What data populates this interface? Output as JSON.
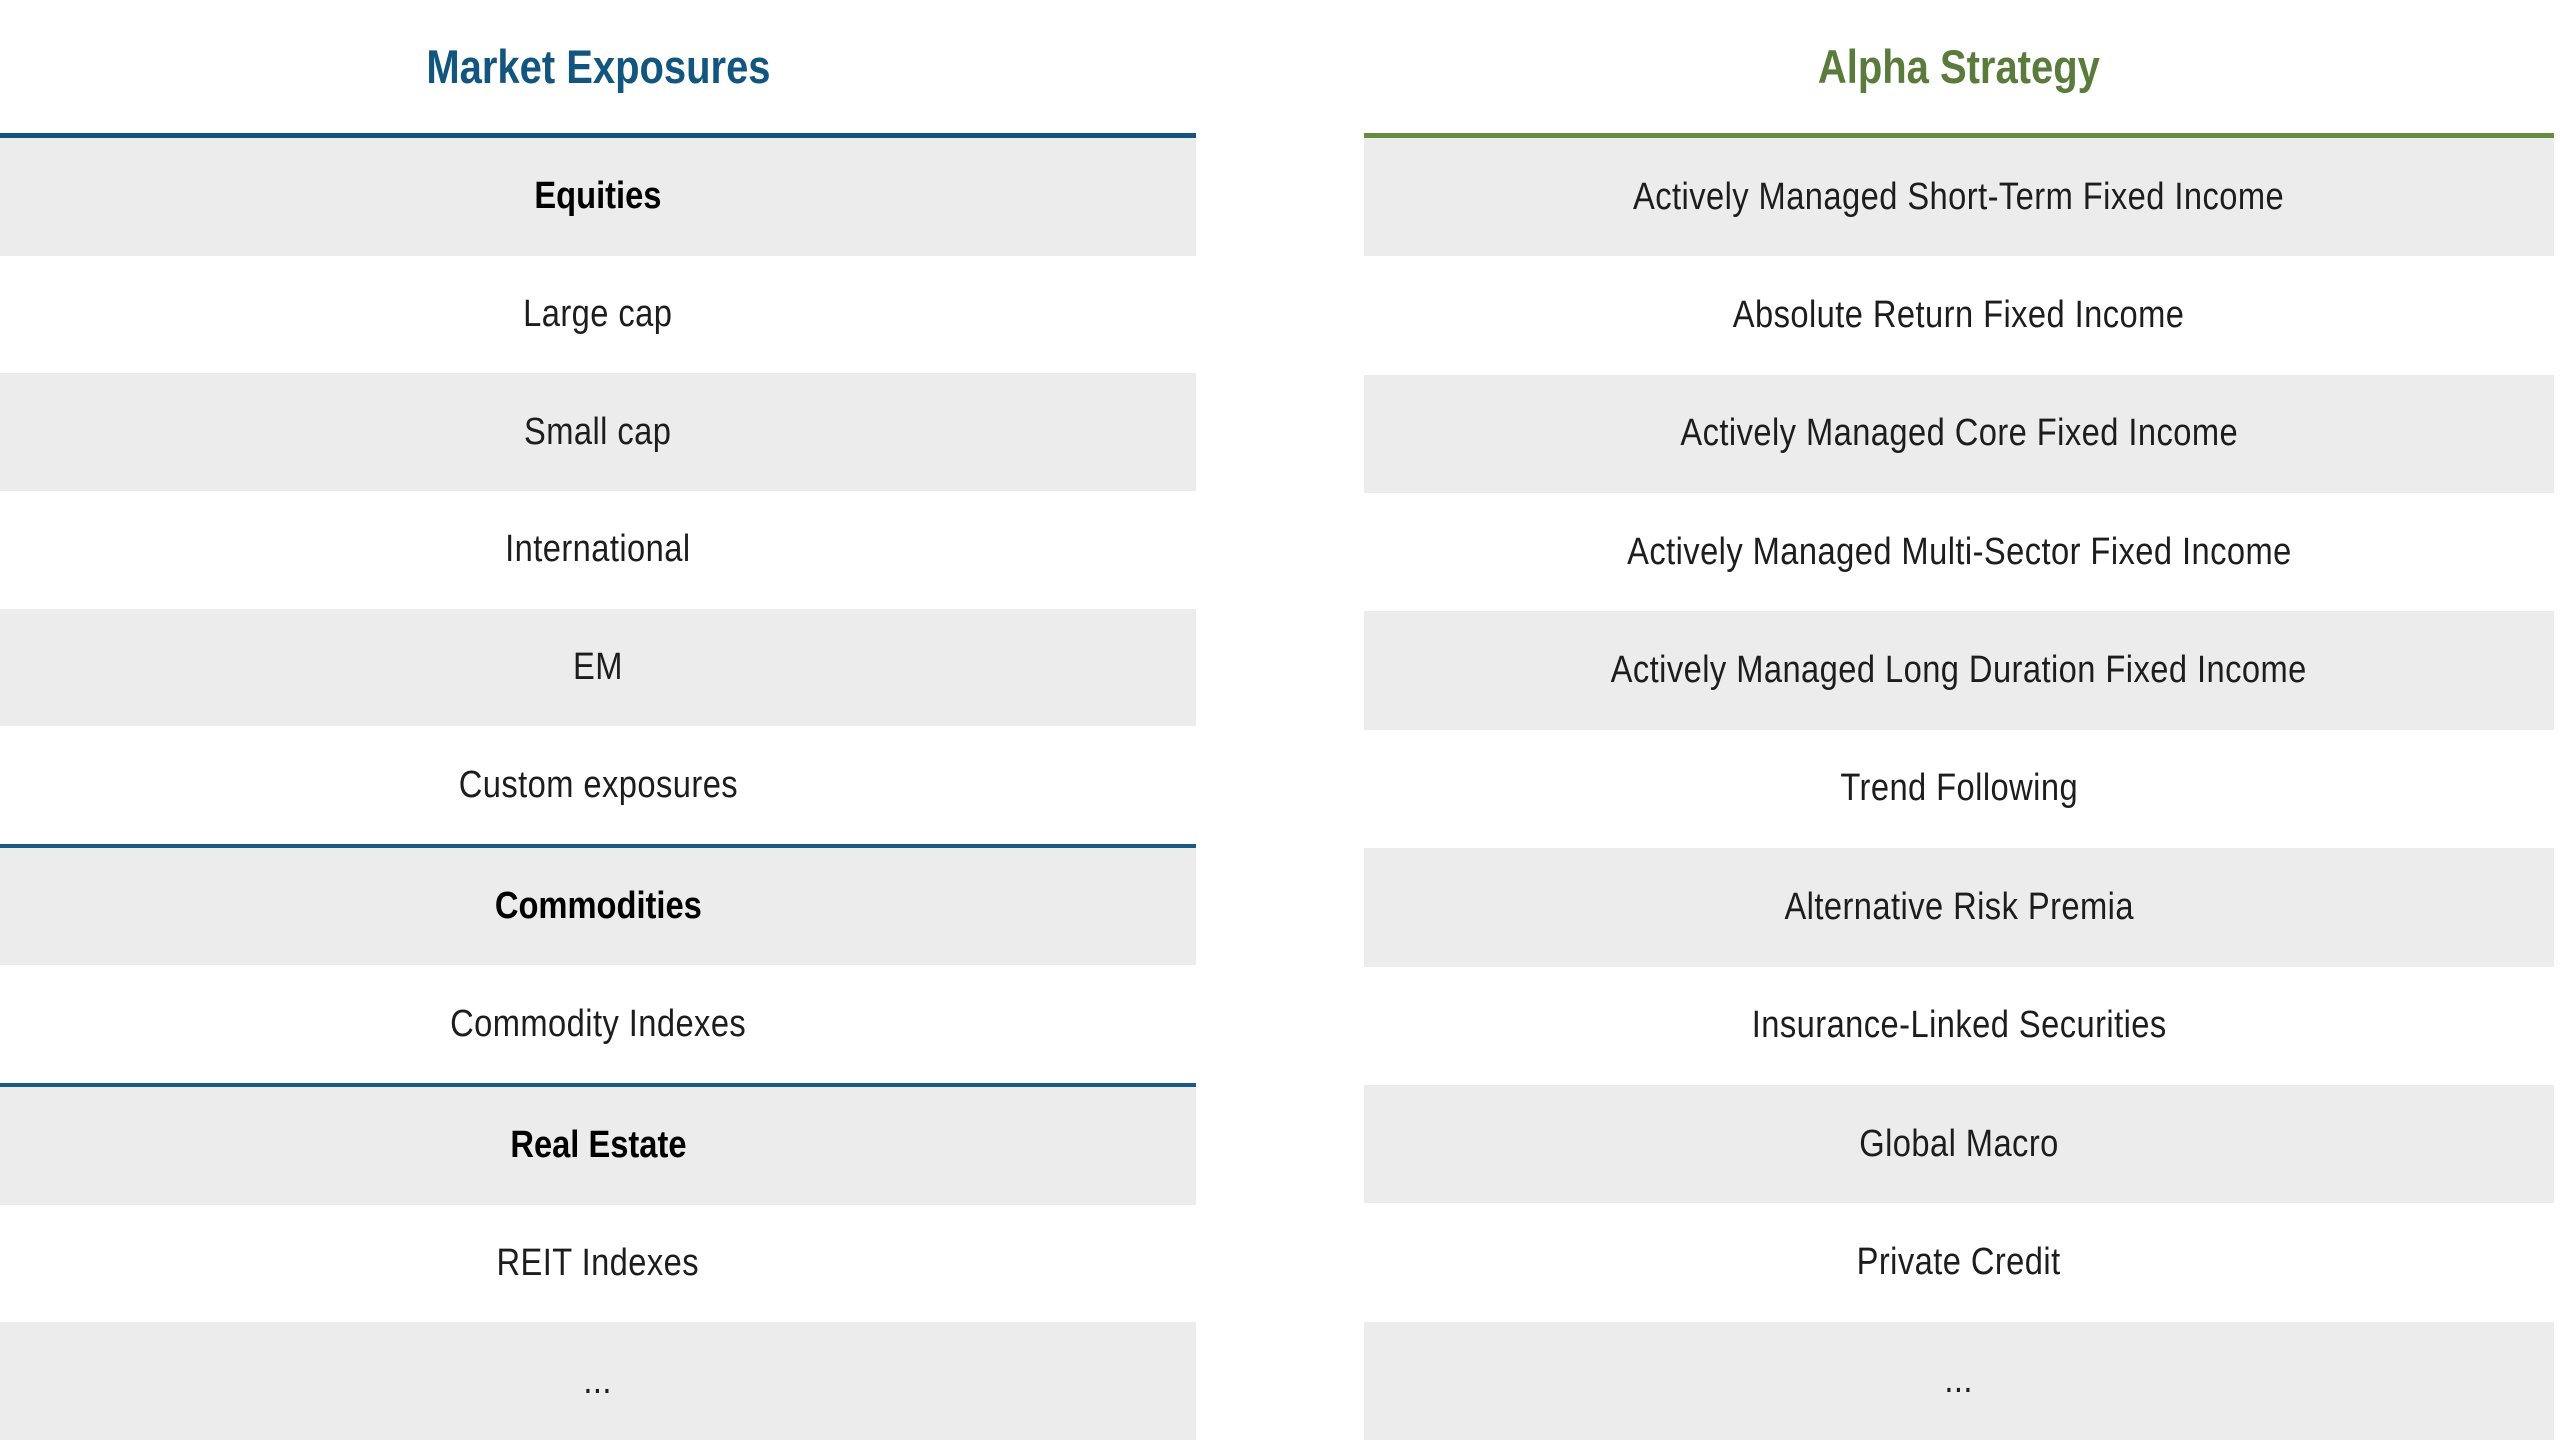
{
  "page": {
    "background_color": "#FFFFFF"
  },
  "left_table": {
    "title": "Market Exposures",
    "title_color": "#12567F",
    "accent_line_color": "#12567F",
    "divider_line_color": "#1A5B85",
    "row_stripe_color": "#ECECEC",
    "rows": [
      {
        "label": "Equities",
        "style": "section-header"
      },
      {
        "label": "Large cap",
        "style": "item"
      },
      {
        "label": "Small cap",
        "style": "item"
      },
      {
        "label": "International",
        "style": "item"
      },
      {
        "label": "EM",
        "style": "item"
      },
      {
        "label": "Custom exposures",
        "style": "item"
      },
      {
        "label": "Commodities",
        "style": "section-header"
      },
      {
        "label": "Commodity Indexes",
        "style": "item"
      },
      {
        "label": "Real Estate",
        "style": "section-header"
      },
      {
        "label": "REIT Indexes",
        "style": "item"
      },
      {
        "label": "...",
        "style": "item"
      }
    ]
  },
  "right_table": {
    "title": "Alpha Strategy",
    "title_color": "#5A7B3B",
    "accent_line_color": "#678B40",
    "row_stripe_color": "#ECECEC",
    "rows": [
      {
        "label": "Actively Managed Short-Term Fixed Income",
        "style": "item"
      },
      {
        "label": "Absolute Return Fixed Income",
        "style": "item"
      },
      {
        "label": "Actively Managed Core Fixed Income",
        "style": "item"
      },
      {
        "label": "Actively Managed Multi-Sector Fixed Income",
        "style": "item"
      },
      {
        "label": "Actively Managed Long Duration Fixed Income",
        "style": "item"
      },
      {
        "label": "Trend Following",
        "style": "item"
      },
      {
        "label": "Alternative Risk Premia",
        "style": "item"
      },
      {
        "label": "Insurance-Linked Securities",
        "style": "item"
      },
      {
        "label": "Global Macro",
        "style": "item"
      },
      {
        "label": "Private Credit",
        "style": "item"
      },
      {
        "label": "...",
        "style": "item"
      }
    ]
  }
}
